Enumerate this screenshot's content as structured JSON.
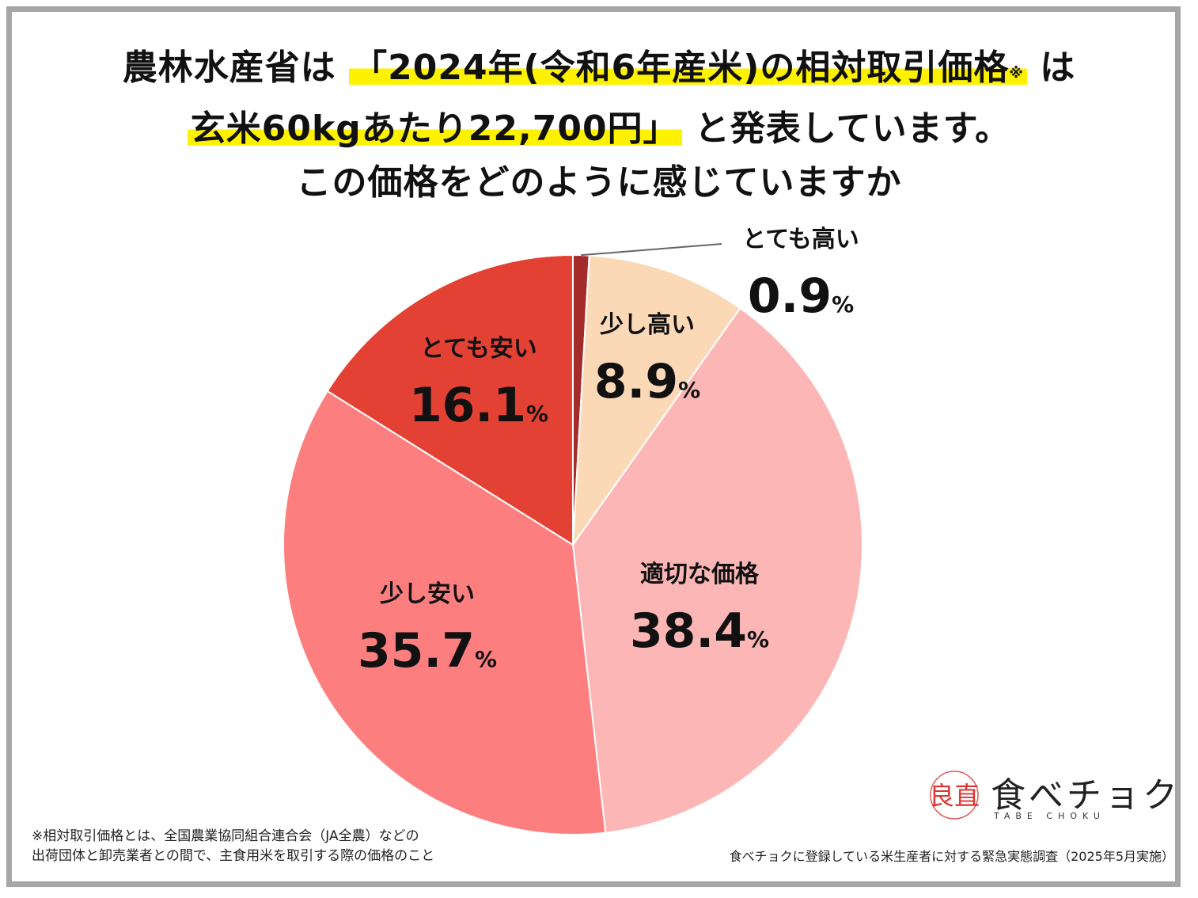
{
  "title": {
    "line1_prefix": "農林水産省は",
    "line1_highlight": "「2024年(令和6年産米)の相対取引価格",
    "note_mark": "※",
    "line1_suffix": "は",
    "line2_highlight": "玄米60kgあたり22,700円」",
    "line2_suffix": "と発表しています。",
    "line3": "この価格をどのように感じていますか"
  },
  "chart_data": {
    "type": "pie",
    "title": "この価格をどのように感じていますか",
    "unit": "%",
    "start": "12 o'clock, clockwise",
    "slices": [
      {
        "label": "とても高い",
        "value": 0.9,
        "display": "0.9",
        "color": "#a52a2a"
      },
      {
        "label": "少し高い",
        "value": 8.9,
        "display": "8.9",
        "color": "#fcd9b6"
      },
      {
        "label": "適切な価格",
        "value": 38.4,
        "display": "38.4",
        "color": "#fcb6b6"
      },
      {
        "label": "少し安い",
        "value": 35.7,
        "display": "35.7",
        "color": "#fd7e7e"
      },
      {
        "label": "とても安い",
        "value": 16.1,
        "display": "16.1",
        "color": "#e34133"
      }
    ]
  },
  "footnote": {
    "line1": "※相対取引価格とは、全国農業協同組合連合会（JA全農）などの",
    "line2": "出荷団体と卸売業者との間で、主食用米を取引する際の価格のこと"
  },
  "source": "食べチョクに登録している米生産者に対する緊急実態調査（2025年5月実施）",
  "logo": {
    "mark": "良直",
    "name": "食べチョク",
    "sub": "TABE CHOKU"
  }
}
